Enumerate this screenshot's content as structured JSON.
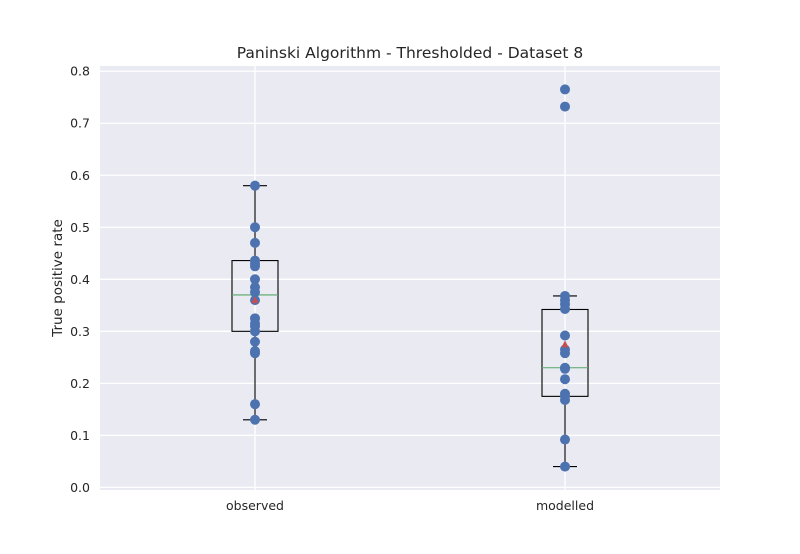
{
  "chart_data": {
    "type": "box",
    "title": "Paninski Algorithm - Thresholded - Dataset 8",
    "xlabel": "",
    "ylabel": "True positive rate",
    "ylim": [
      -0.005,
      0.81
    ],
    "yticks": [
      0.0,
      0.1,
      0.2,
      0.3,
      0.4,
      0.5,
      0.6,
      0.7,
      0.8
    ],
    "ytick_labels": [
      "0.0",
      "0.1",
      "0.2",
      "0.3",
      "0.4",
      "0.5",
      "0.6",
      "0.7",
      "0.8"
    ],
    "grid": true,
    "categories": [
      "observed",
      "modelled"
    ],
    "boxes": [
      {
        "name": "observed",
        "whisker_low": 0.13,
        "q1": 0.3,
        "median": 0.37,
        "mean": 0.36,
        "q3": 0.436,
        "whisker_high": 0.58,
        "points": [
          0.58,
          0.5,
          0.47,
          0.436,
          0.43,
          0.425,
          0.4,
          0.385,
          0.375,
          0.36,
          0.325,
          0.315,
          0.31,
          0.3,
          0.28,
          0.262,
          0.258,
          0.16,
          0.13
        ]
      },
      {
        "name": "modelled",
        "whisker_low": 0.04,
        "q1": 0.175,
        "median": 0.23,
        "mean": 0.275,
        "q3": 0.342,
        "whisker_high": 0.368,
        "points": [
          0.765,
          0.732,
          0.368,
          0.36,
          0.352,
          0.343,
          0.292,
          0.265,
          0.258,
          0.23,
          0.228,
          0.208,
          0.18,
          0.175,
          0.168,
          0.092,
          0.04
        ]
      }
    ],
    "colors": {
      "background": "#eaeaf2",
      "grid": "#ffffff",
      "points": "#4c72b0",
      "median": "#55a868",
      "mean": "#c44e52",
      "box": "#000000"
    }
  }
}
